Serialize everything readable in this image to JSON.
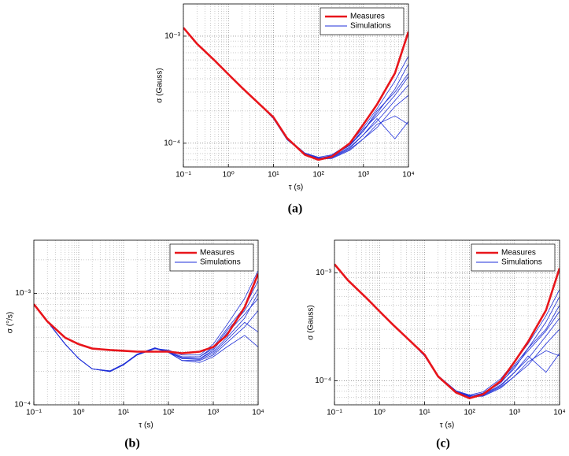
{
  "chart_data": [
    {
      "type": "line",
      "label": "(a)",
      "xlabel": "τ (s)",
      "ylabel": "σ (Gauss)",
      "xscale": "log",
      "yscale": "log",
      "grid": true,
      "legend": "upper right",
      "x": [
        0.1,
        0.2,
        0.5,
        1,
        2,
        5,
        10,
        20,
        50,
        100,
        200,
        500,
        1000,
        2000,
        5000,
        10000
      ],
      "xlim": [
        0.1,
        10000
      ],
      "ylim": [
        6e-05,
        0.002
      ],
      "xticks": [
        {
          "value": 0.1,
          "label": "10⁻¹"
        },
        {
          "value": 1,
          "label": "10⁰"
        },
        {
          "value": 10,
          "label": "10¹"
        },
        {
          "value": 100,
          "label": "10²"
        },
        {
          "value": 1000,
          "label": "10³"
        },
        {
          "value": 10000,
          "label": "10⁴"
        }
      ],
      "yticks": [
        {
          "value": 0.0001,
          "label": "10⁻⁴"
        },
        {
          "value": 0.001,
          "label": "10⁻³"
        }
      ],
      "series": [
        {
          "name": "Measures",
          "color": "#e8151b",
          "values": [
            0.0012,
            0.00085,
            0.00059,
            0.00044,
            0.00033,
            0.00023,
            0.000175,
            0.000112,
            7.8e-05,
            7e-05,
            7.5e-05,
            0.0001,
            0.00015,
            0.00023,
            0.00045,
            0.0011
          ]
        },
        {
          "name": "Simulations",
          "color": "#1f2fd8",
          "runs": [
            [
              0.0012,
              0.00085,
              0.00059,
              0.00044,
              0.00033,
              0.00023,
              0.00017,
              0.00011,
              8e-05,
              7.2e-05,
              7.6e-05,
              9.5e-05,
              0.00013,
              0.00019,
              0.00032,
              0.00055
            ],
            [
              0.0012,
              0.00085,
              0.00059,
              0.00044,
              0.00033,
              0.00023,
              0.00017,
              0.000108,
              7.9e-05,
              7.1e-05,
              7.4e-05,
              9e-05,
              0.00012,
              0.00016,
              0.00025,
              0.00035
            ],
            [
              0.0012,
              0.00085,
              0.00059,
              0.00044,
              0.00033,
              0.00023,
              0.000172,
              0.000112,
              8.1e-05,
              7.4e-05,
              7.8e-05,
              0.0001,
              0.00014,
              0.00021,
              0.00038,
              0.00065
            ],
            [
              0.0012,
              0.00085,
              0.00059,
              0.00044,
              0.00033,
              0.00023,
              0.00017,
              0.000109,
              7.8e-05,
              7e-05,
              7.3e-05,
              8.8e-05,
              0.00011,
              0.00015,
              0.00018,
              0.00015
            ],
            [
              0.0012,
              0.00085,
              0.00059,
              0.00044,
              0.00033,
              0.00023,
              0.00017,
              0.00011,
              8e-05,
              7.3e-05,
              7.5e-05,
              9.2e-05,
              0.00012,
              0.00017,
              0.00011,
              0.00016
            ],
            [
              0.0012,
              0.00085,
              0.00059,
              0.00044,
              0.00033,
              0.00023,
              0.000171,
              0.000111,
              8e-05,
              7.2e-05,
              7.7e-05,
              9.8e-05,
              0.00013,
              0.0002,
              0.0003,
              0.00045
            ],
            [
              0.0012,
              0.00085,
              0.00059,
              0.00044,
              0.00033,
              0.00023,
              0.00017,
              0.000109,
              7.9e-05,
              7.1e-05,
              7.2e-05,
              8.6e-05,
              0.00011,
              0.00014,
              0.00022,
              0.00028
            ],
            [
              0.0012,
              0.00085,
              0.00059,
              0.00044,
              0.00033,
              0.00023,
              0.00017,
              0.00011,
              8e-05,
              7.2e-05,
              7.6e-05,
              9.6e-05,
              0.000135,
              0.00018,
              0.00028,
              0.00042
            ]
          ]
        }
      ]
    },
    {
      "type": "line",
      "label": "(b)",
      "xlabel": "τ (s)",
      "ylabel": "σ (°/s)",
      "xscale": "log",
      "yscale": "log",
      "grid": true,
      "legend": "upper right",
      "x": [
        0.1,
        0.2,
        0.5,
        1,
        2,
        5,
        10,
        20,
        50,
        100,
        200,
        500,
        1000,
        2000,
        5000,
        10000
      ],
      "xlim": [
        0.1,
        10000
      ],
      "ylim": [
        0.0001,
        0.003
      ],
      "xticks": [
        {
          "value": 0.1,
          "label": "10⁻¹"
        },
        {
          "value": 1,
          "label": "10⁰"
        },
        {
          "value": 10,
          "label": "10¹"
        },
        {
          "value": 100,
          "label": "10²"
        },
        {
          "value": 1000,
          "label": "10³"
        },
        {
          "value": 10000,
          "label": "10⁴"
        }
      ],
      "yticks": [
        {
          "value": 0.0001,
          "label": "10⁻⁴"
        },
        {
          "value": 0.001,
          "label": "10⁻³"
        }
      ],
      "series": [
        {
          "name": "Measures",
          "color": "#e8151b",
          "values": [
            0.0008,
            0.00056,
            0.0004,
            0.00035,
            0.00032,
            0.00031,
            0.000305,
            0.0003,
            0.0003,
            0.0003,
            0.00029,
            0.0003,
            0.00033,
            0.00042,
            0.00075,
            0.0015
          ]
        },
        {
          "name": "Simulations",
          "color": "#1f2fd8",
          "runs": [
            [
              0.0008,
              0.00056,
              0.00035,
              0.00026,
              0.00021,
              0.0002,
              0.00023,
              0.00028,
              0.00032,
              0.0003,
              0.00026,
              0.00026,
              0.0003,
              0.0004,
              0.0006,
              0.001
            ],
            [
              0.0008,
              0.00056,
              0.00035,
              0.00026,
              0.00021,
              0.000198,
              0.000228,
              0.00028,
              0.000318,
              0.000305,
              0.00027,
              0.00027,
              0.00033,
              0.00048,
              0.00075,
              0.0013
            ],
            [
              0.0008,
              0.00056,
              0.00035,
              0.00026,
              0.00021,
              0.000202,
              0.000232,
              0.000285,
              0.000325,
              0.0003,
              0.00025,
              0.00025,
              0.00028,
              0.00036,
              0.0005,
              0.0007
            ],
            [
              0.0008,
              0.00056,
              0.00035,
              0.00026,
              0.00021,
              0.0002,
              0.00023,
              0.00028,
              0.00032,
              0.00031,
              0.00028,
              0.00028,
              0.00035,
              0.00052,
              0.0009,
              0.0016
            ],
            [
              0.0008,
              0.00056,
              0.00035,
              0.00026,
              0.00021,
              0.000199,
              0.00023,
              0.00028,
              0.00032,
              0.000295,
              0.00025,
              0.00024,
              0.00027,
              0.00033,
              0.00042,
              0.00033
            ],
            [
              0.0008,
              0.00056,
              0.00035,
              0.00026,
              0.00021,
              0.0002,
              0.000231,
              0.00028,
              0.00032,
              0.0003,
              0.00026,
              0.00026,
              0.00031,
              0.00044,
              0.00065,
              0.0009
            ],
            [
              0.0008,
              0.00056,
              0.00035,
              0.00026,
              0.00021,
              0.000201,
              0.00023,
              0.000282,
              0.000322,
              0.000302,
              0.00026,
              0.000255,
              0.00029,
              0.00038,
              0.00055,
              0.00045
            ],
            [
              0.0008,
              0.00056,
              0.00035,
              0.00026,
              0.00021,
              0.0002,
              0.00023,
              0.00028,
              0.00032,
              0.0003,
              0.000265,
              0.00027,
              0.00032,
              0.00046,
              0.0007,
              0.0011
            ]
          ]
        }
      ]
    },
    {
      "type": "line",
      "label": "(c)",
      "xlabel": "τ (s)",
      "ylabel": "σ (Gauss)",
      "xscale": "log",
      "yscale": "log",
      "grid": true,
      "legend": "upper right",
      "x": [
        0.1,
        0.2,
        0.5,
        1,
        2,
        5,
        10,
        20,
        50,
        100,
        200,
        500,
        1000,
        2000,
        5000,
        10000
      ],
      "xlim": [
        0.1,
        10000
      ],
      "ylim": [
        6e-05,
        0.002
      ],
      "xticks": [
        {
          "value": 0.1,
          "label": "10⁻¹"
        },
        {
          "value": 1,
          "label": "10⁰"
        },
        {
          "value": 10,
          "label": "10¹"
        },
        {
          "value": 100,
          "label": "10²"
        },
        {
          "value": 1000,
          "label": "10³"
        },
        {
          "value": 10000,
          "label": "10⁴"
        }
      ],
      "yticks": [
        {
          "value": 0.0001,
          "label": "10⁻⁴"
        },
        {
          "value": 0.001,
          "label": "10⁻³"
        }
      ],
      "series": [
        {
          "name": "Measures",
          "color": "#e8151b",
          "values": [
            0.0012,
            0.00085,
            0.00059,
            0.00044,
            0.00033,
            0.00023,
            0.000175,
            0.00011,
            7.8e-05,
            6.9e-05,
            7.5e-05,
            0.0001,
            0.00015,
            0.00023,
            0.00045,
            0.0011
          ]
        },
        {
          "name": "Simulations",
          "color": "#1f2fd8",
          "runs": [
            [
              0.0012,
              0.00085,
              0.00059,
              0.00044,
              0.00033,
              0.00023,
              0.00017,
              0.00011,
              8e-05,
              7.2e-05,
              7.7e-05,
              0.0001,
              0.00014,
              0.0002,
              0.00035,
              0.0006
            ],
            [
              0.0012,
              0.00085,
              0.00059,
              0.00044,
              0.00033,
              0.00023,
              0.00017,
              0.000108,
              7.9e-05,
              7.1e-05,
              7.4e-05,
              9e-05,
              0.00012,
              0.00016,
              0.00026,
              0.00038
            ],
            [
              0.0012,
              0.00085,
              0.00059,
              0.00044,
              0.00033,
              0.00023,
              0.000172,
              0.000112,
              8.1e-05,
              7.4e-05,
              7.9e-05,
              0.000105,
              0.00015,
              0.00022,
              0.0004,
              0.0007
            ],
            [
              0.0012,
              0.00085,
              0.00059,
              0.00044,
              0.00033,
              0.00023,
              0.00017,
              0.000109,
              7.8e-05,
              7e-05,
              7.3e-05,
              8.8e-05,
              0.00011,
              0.00015,
              0.00019,
              0.00017
            ],
            [
              0.0012,
              0.00085,
              0.00059,
              0.00044,
              0.00033,
              0.00023,
              0.00017,
              0.00011,
              8e-05,
              7.3e-05,
              7.5e-05,
              9.2e-05,
              0.00012,
              0.00017,
              0.00012,
              0.00018
            ],
            [
              0.0012,
              0.00085,
              0.00059,
              0.00044,
              0.00033,
              0.00023,
              0.000171,
              0.000111,
              8e-05,
              7.2e-05,
              7.7e-05,
              9.8e-05,
              0.00013,
              0.0002,
              0.0003,
              0.0005
            ],
            [
              0.0012,
              0.00085,
              0.00059,
              0.00044,
              0.00033,
              0.00023,
              0.00017,
              0.000109,
              7.9e-05,
              7.1e-05,
              7.2e-05,
              8.6e-05,
              0.00011,
              0.00014,
              0.00022,
              0.0003
            ],
            [
              0.0012,
              0.00085,
              0.00059,
              0.00044,
              0.00033,
              0.00023,
              0.00017,
              0.00011,
              8e-05,
              7.2e-05,
              7.6e-05,
              9.6e-05,
              0.000135,
              0.00019,
              0.00029,
              0.00044
            ]
          ]
        }
      ]
    }
  ]
}
